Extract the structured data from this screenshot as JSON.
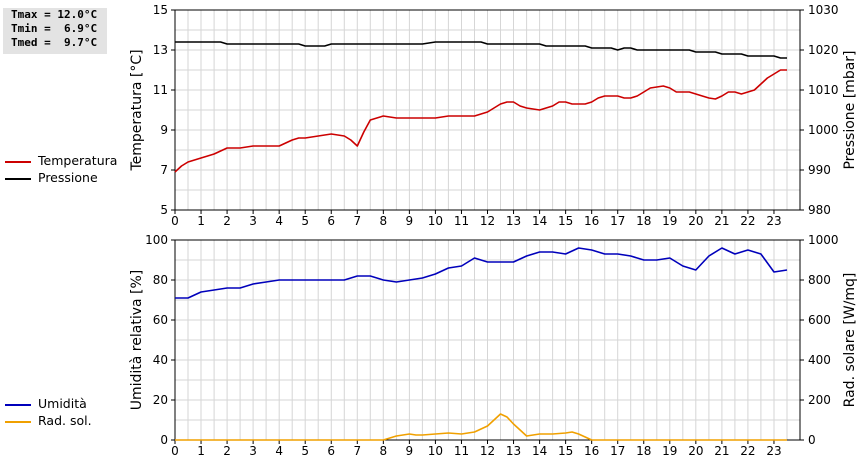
{
  "stats": {
    "tmax": "Tmax = 12.0°C",
    "tmin": "Tmin =  6.9°C",
    "tmed": "Tmed =  9.7°C"
  },
  "legend_top": [
    {
      "label": "Temperatura",
      "color": "#cc0000"
    },
    {
      "label": "Pressione",
      "color": "#000000"
    }
  ],
  "legend_bottom": [
    {
      "label": "Umidità",
      "color": "#0000bb"
    },
    {
      "label": "Rad. sol.",
      "color": "#f0a000"
    }
  ],
  "chart_data": [
    {
      "type": "line",
      "xlabel": "",
      "x_ticks": [
        0,
        1,
        2,
        3,
        4,
        5,
        6,
        7,
        8,
        9,
        10,
        11,
        12,
        13,
        14,
        15,
        16,
        17,
        18,
        19,
        20,
        21,
        22,
        23
      ],
      "xlim": [
        0,
        24
      ],
      "ylabel": "Temperatura [°C]",
      "ylim": [
        5,
        15
      ],
      "y_ticks": [
        5,
        7,
        9,
        11,
        13,
        15
      ],
      "y2label": "Pressione [mbar]",
      "y2lim": [
        980,
        1030
      ],
      "y2_ticks": [
        980,
        990,
        1000,
        1010,
        1020,
        1030
      ],
      "grid": true,
      "series": [
        {
          "name": "Temperatura",
          "axis": "left",
          "color": "#cc0000",
          "x": [
            0,
            0.25,
            0.5,
            0.75,
            1,
            1.25,
            1.5,
            1.75,
            2,
            2.25,
            2.5,
            2.75,
            3,
            3.25,
            3.5,
            3.75,
            4,
            4.25,
            4.5,
            4.75,
            5,
            5.25,
            5.5,
            5.75,
            6,
            6.25,
            6.5,
            6.75,
            7,
            7.25,
            7.5,
            7.75,
            8,
            8.25,
            8.5,
            8.75,
            9,
            9.25,
            9.5,
            9.75,
            10,
            10.25,
            10.5,
            10.75,
            11,
            11.25,
            11.5,
            11.75,
            12,
            12.25,
            12.5,
            12.75,
            13,
            13.25,
            13.5,
            13.75,
            14,
            14.25,
            14.5,
            14.75,
            15,
            15.25,
            15.5,
            15.75,
            16,
            16.25,
            16.5,
            16.75,
            17,
            17.25,
            17.5,
            17.75,
            18,
            18.25,
            18.5,
            18.75,
            19,
            19.25,
            19.5,
            19.75,
            20,
            20.25,
            20.5,
            20.75,
            21,
            21.25,
            21.5,
            21.75,
            22,
            22.25,
            22.5,
            22.75,
            23,
            23.25,
            23.5
          ],
          "values": [
            6.9,
            7.2,
            7.4,
            7.5,
            7.6,
            7.7,
            7.8,
            7.95,
            8.1,
            8.1,
            8.1,
            8.15,
            8.2,
            8.2,
            8.2,
            8.2,
            8.2,
            8.35,
            8.5,
            8.6,
            8.6,
            8.65,
            8.7,
            8.75,
            8.8,
            8.75,
            8.7,
            8.5,
            8.2,
            8.9,
            9.5,
            9.6,
            9.7,
            9.65,
            9.6,
            9.6,
            9.6,
            9.6,
            9.6,
            9.6,
            9.6,
            9.65,
            9.7,
            9.7,
            9.7,
            9.7,
            9.7,
            9.8,
            9.9,
            10.1,
            10.3,
            10.4,
            10.4,
            10.2,
            10.1,
            10.05,
            10.0,
            10.1,
            10.2,
            10.4,
            10.4,
            10.3,
            10.3,
            10.3,
            10.4,
            10.6,
            10.7,
            10.7,
            10.7,
            10.6,
            10.6,
            10.7,
            10.9,
            11.1,
            11.15,
            11.2,
            11.1,
            10.9,
            10.9,
            10.9,
            10.8,
            10.7,
            10.6,
            10.55,
            10.7,
            10.9,
            10.9,
            10.8,
            10.9,
            11.0,
            11.3,
            11.6,
            11.8,
            12.0,
            12.0
          ]
        },
        {
          "name": "Pressione",
          "axis": "right",
          "color": "#000000",
          "x": [
            0,
            0.5,
            1,
            1.5,
            1.75,
            2,
            2.5,
            3,
            3.5,
            4,
            4.5,
            4.75,
            5,
            5.5,
            5.75,
            6,
            6.5,
            7,
            7.5,
            8,
            8.5,
            9,
            9.25,
            9.5,
            10,
            10.5,
            11,
            11.5,
            11.75,
            12,
            12.5,
            13,
            13.5,
            14,
            14.25,
            14.5,
            15,
            15.5,
            15.75,
            16,
            16.5,
            16.75,
            17,
            17.25,
            17.5,
            17.75,
            18,
            18.5,
            19,
            19.5,
            19.75,
            20,
            20.5,
            20.75,
            21,
            21.5,
            21.75,
            22,
            22.5,
            23,
            23.25,
            23.5
          ],
          "values": [
            1022,
            1022,
            1022,
            1022,
            1022,
            1021.5,
            1021.5,
            1021.5,
            1021.5,
            1021.5,
            1021.5,
            1021.5,
            1021,
            1021,
            1021,
            1021.5,
            1021.5,
            1021.5,
            1021.5,
            1021.5,
            1021.5,
            1021.5,
            1021.5,
            1021.5,
            1022,
            1022,
            1022,
            1022,
            1022,
            1021.5,
            1021.5,
            1021.5,
            1021.5,
            1021.5,
            1021,
            1021,
            1021,
            1021,
            1021,
            1020.5,
            1020.5,
            1020.5,
            1020,
            1020.5,
            1020.5,
            1020,
            1020,
            1020,
            1020,
            1020,
            1020,
            1019.5,
            1019.5,
            1019.5,
            1019,
            1019,
            1019,
            1018.5,
            1018.5,
            1018.5,
            1018,
            1018
          ]
        }
      ]
    },
    {
      "type": "line",
      "xlabel": "",
      "x_ticks": [
        0,
        1,
        2,
        3,
        4,
        5,
        6,
        7,
        8,
        9,
        10,
        11,
        12,
        13,
        14,
        15,
        16,
        17,
        18,
        19,
        20,
        21,
        22,
        23
      ],
      "xlim": [
        0,
        24
      ],
      "ylabel": "Umidità relativa [%]",
      "ylim": [
        0,
        100
      ],
      "y_ticks": [
        0,
        20,
        40,
        60,
        80,
        100
      ],
      "y2label": "Rad. solare [W/mq]",
      "y2lim": [
        0,
        1000
      ],
      "y2_ticks": [
        0,
        200,
        400,
        600,
        800,
        1000
      ],
      "grid": true,
      "series": [
        {
          "name": "Umidità",
          "axis": "left",
          "color": "#0000bb",
          "x": [
            0,
            0.5,
            1,
            1.5,
            2,
            2.5,
            3,
            3.5,
            4,
            4.5,
            5,
            5.5,
            6,
            6.5,
            7,
            7.5,
            8,
            8.5,
            9,
            9.5,
            10,
            10.5,
            11,
            11.5,
            12,
            12.5,
            13,
            13.5,
            14,
            14.5,
            15,
            15.5,
            16,
            16.5,
            17,
            17.5,
            18,
            18.5,
            19,
            19.5,
            20,
            20.5,
            21,
            21.5,
            22,
            22.5,
            23,
            23.5
          ],
          "values": [
            71,
            71,
            74,
            75,
            76,
            76,
            78,
            79,
            80,
            80,
            80,
            80,
            80,
            80,
            82,
            82,
            80,
            79,
            80,
            81,
            83,
            86,
            87,
            91,
            89,
            89,
            89,
            92,
            94,
            94,
            93,
            96,
            95,
            93,
            93,
            92,
            90,
            90,
            91,
            87,
            85,
            92,
            96,
            93,
            95,
            93,
            84,
            85
          ]
        },
        {
          "name": "Rad. sol.",
          "axis": "right",
          "color": "#f0a000",
          "x": [
            0,
            0.5,
            1,
            1.5,
            2,
            2.5,
            3,
            3.5,
            4,
            4.5,
            5,
            5.5,
            6,
            6.5,
            7,
            7.5,
            8,
            8.25,
            8.5,
            8.75,
            9,
            9.25,
            9.5,
            10,
            10.5,
            11,
            11.5,
            12,
            12.25,
            12.5,
            12.75,
            13,
            13.25,
            13.5,
            13.75,
            14,
            14.5,
            15,
            15.25,
            15.5,
            15.75,
            16,
            16.5,
            17,
            17.5,
            18,
            18.5,
            19,
            19.5,
            20,
            20.5,
            21,
            21.5,
            22,
            22.5,
            23,
            23.5
          ],
          "values": [
            0,
            0,
            0,
            0,
            0,
            0,
            0,
            0,
            0,
            0,
            0,
            0,
            0,
            0,
            0,
            0,
            0,
            10,
            20,
            25,
            30,
            25,
            25,
            30,
            35,
            30,
            40,
            70,
            100,
            130,
            115,
            80,
            50,
            20,
            25,
            30,
            30,
            35,
            40,
            30,
            15,
            0,
            0,
            0,
            0,
            0,
            0,
            0,
            0,
            0,
            0,
            0,
            0,
            0,
            0,
            0,
            0
          ]
        }
      ]
    }
  ]
}
